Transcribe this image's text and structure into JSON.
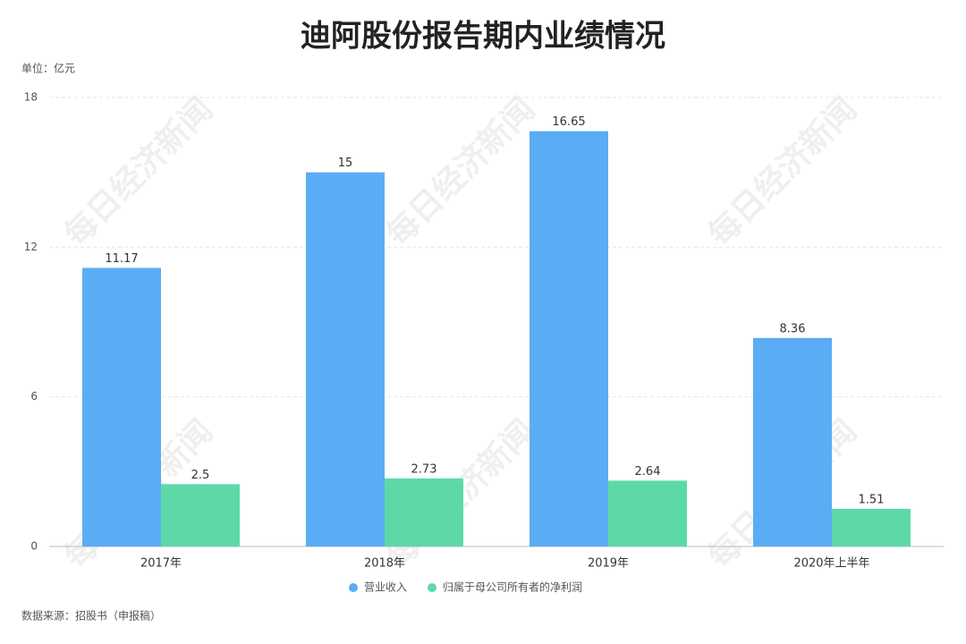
{
  "chart_data": {
    "type": "bar",
    "title": "迪阿股份报告期内业绩情况",
    "unit": "单位：亿元",
    "source": "数据来源：招股书（申报稿）",
    "watermark": "每日经济新闻",
    "categories": [
      "2017年",
      "2018年",
      "2019年",
      "2020年上半年"
    ],
    "series": [
      {
        "name": "营业收入",
        "color": "#5aacf4",
        "values": [
          11.17,
          15,
          16.65,
          8.36
        ]
      },
      {
        "name": "归属于母公司所有者的净利润",
        "color": "#5dd9a8",
        "values": [
          2.5,
          2.73,
          2.64,
          1.51
        ]
      }
    ],
    "ylim": [
      0,
      18
    ],
    "yticks": [
      0,
      6,
      12,
      18
    ],
    "grid": true
  }
}
